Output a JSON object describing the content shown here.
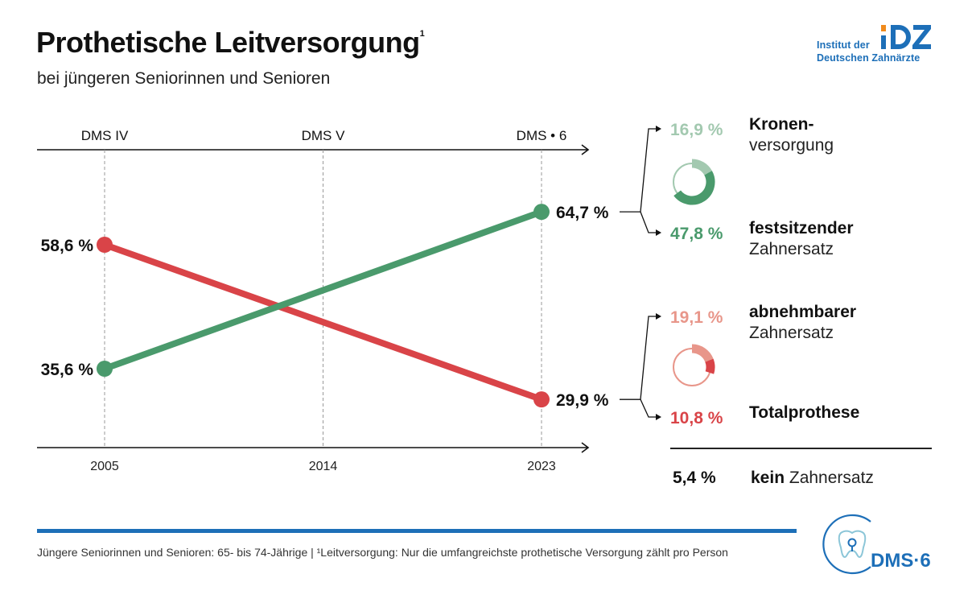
{
  "header": {
    "title": "Prothetische Leitversorgung",
    "title_footnote_mark": "1",
    "subtitle": "bei jüngeren Seniorinnen und Senioren"
  },
  "logo_idz": {
    "line1": "Institut der",
    "line2": "Deutschen Zahnärzte",
    "mark": "IDZ",
    "colors": {
      "blue": "#1d6fb8",
      "orange": "#f08a1c"
    }
  },
  "chart_data": {
    "type": "line",
    "title": "Prothetische Leitversorgung",
    "subtitle": "bei jüngeren Seniorinnen und Senioren",
    "x": [
      "2005",
      "2014",
      "2023"
    ],
    "x_top_labels": [
      "DMS IV",
      "DMS V",
      "DMS • 6"
    ],
    "xlabel": "",
    "ylabel": "",
    "ylim": [
      20,
      70
    ],
    "grid": "vertical dashed at each year",
    "series": [
      {
        "name": "festsitzender Zahnersatz (gesamt)",
        "color": "#4a9a6c",
        "points": [
          {
            "x": "2005",
            "y": 35.6,
            "label": "35,6 %"
          },
          {
            "x": "2023",
            "y": 64.7,
            "label": "64,7 %"
          }
        ]
      },
      {
        "name": "abnehmbarer Zahnersatz (gesamt)",
        "color": "#d94448",
        "points": [
          {
            "x": "2005",
            "y": 58.6,
            "label": "58,6 %"
          },
          {
            "x": "2023",
            "y": 29.9,
            "label": "29,9 %"
          }
        ]
      }
    ],
    "breakdown": [
      {
        "parent": "64,7 %",
        "items": [
          {
            "value": 16.9,
            "label": "16,9 %",
            "bold": "Kronen-",
            "regular": "versorgung",
            "color": "#a3c9b0"
          },
          {
            "value": 47.8,
            "label": "47,8 %",
            "bold": "festsitzender",
            "regular": "Zahnersatz",
            "color": "#4a9a6c"
          }
        ]
      },
      {
        "parent": "29,9 %",
        "items": [
          {
            "value": 19.1,
            "label": "19,1 %",
            "bold": "abnehmbarer",
            "regular": "Zahnersatz",
            "color": "#e8968a"
          },
          {
            "value": 10.8,
            "label": "10,8 %",
            "bold": "Totalprothese",
            "regular": "",
            "color": "#d94448"
          }
        ]
      }
    ],
    "none": {
      "value": 5.4,
      "label": "5,4 %",
      "bold": "kein",
      "regular": " Zahnersatz"
    }
  },
  "footer": {
    "note": "Jüngere Seniorinnen und Senioren: 65- bis 74-Jährige | ¹Leitversorgung: Nur die umfangreichste prothetische Versorgung zählt pro Person",
    "logo_text": "DMS·6",
    "accent": "#1d6fb8"
  }
}
